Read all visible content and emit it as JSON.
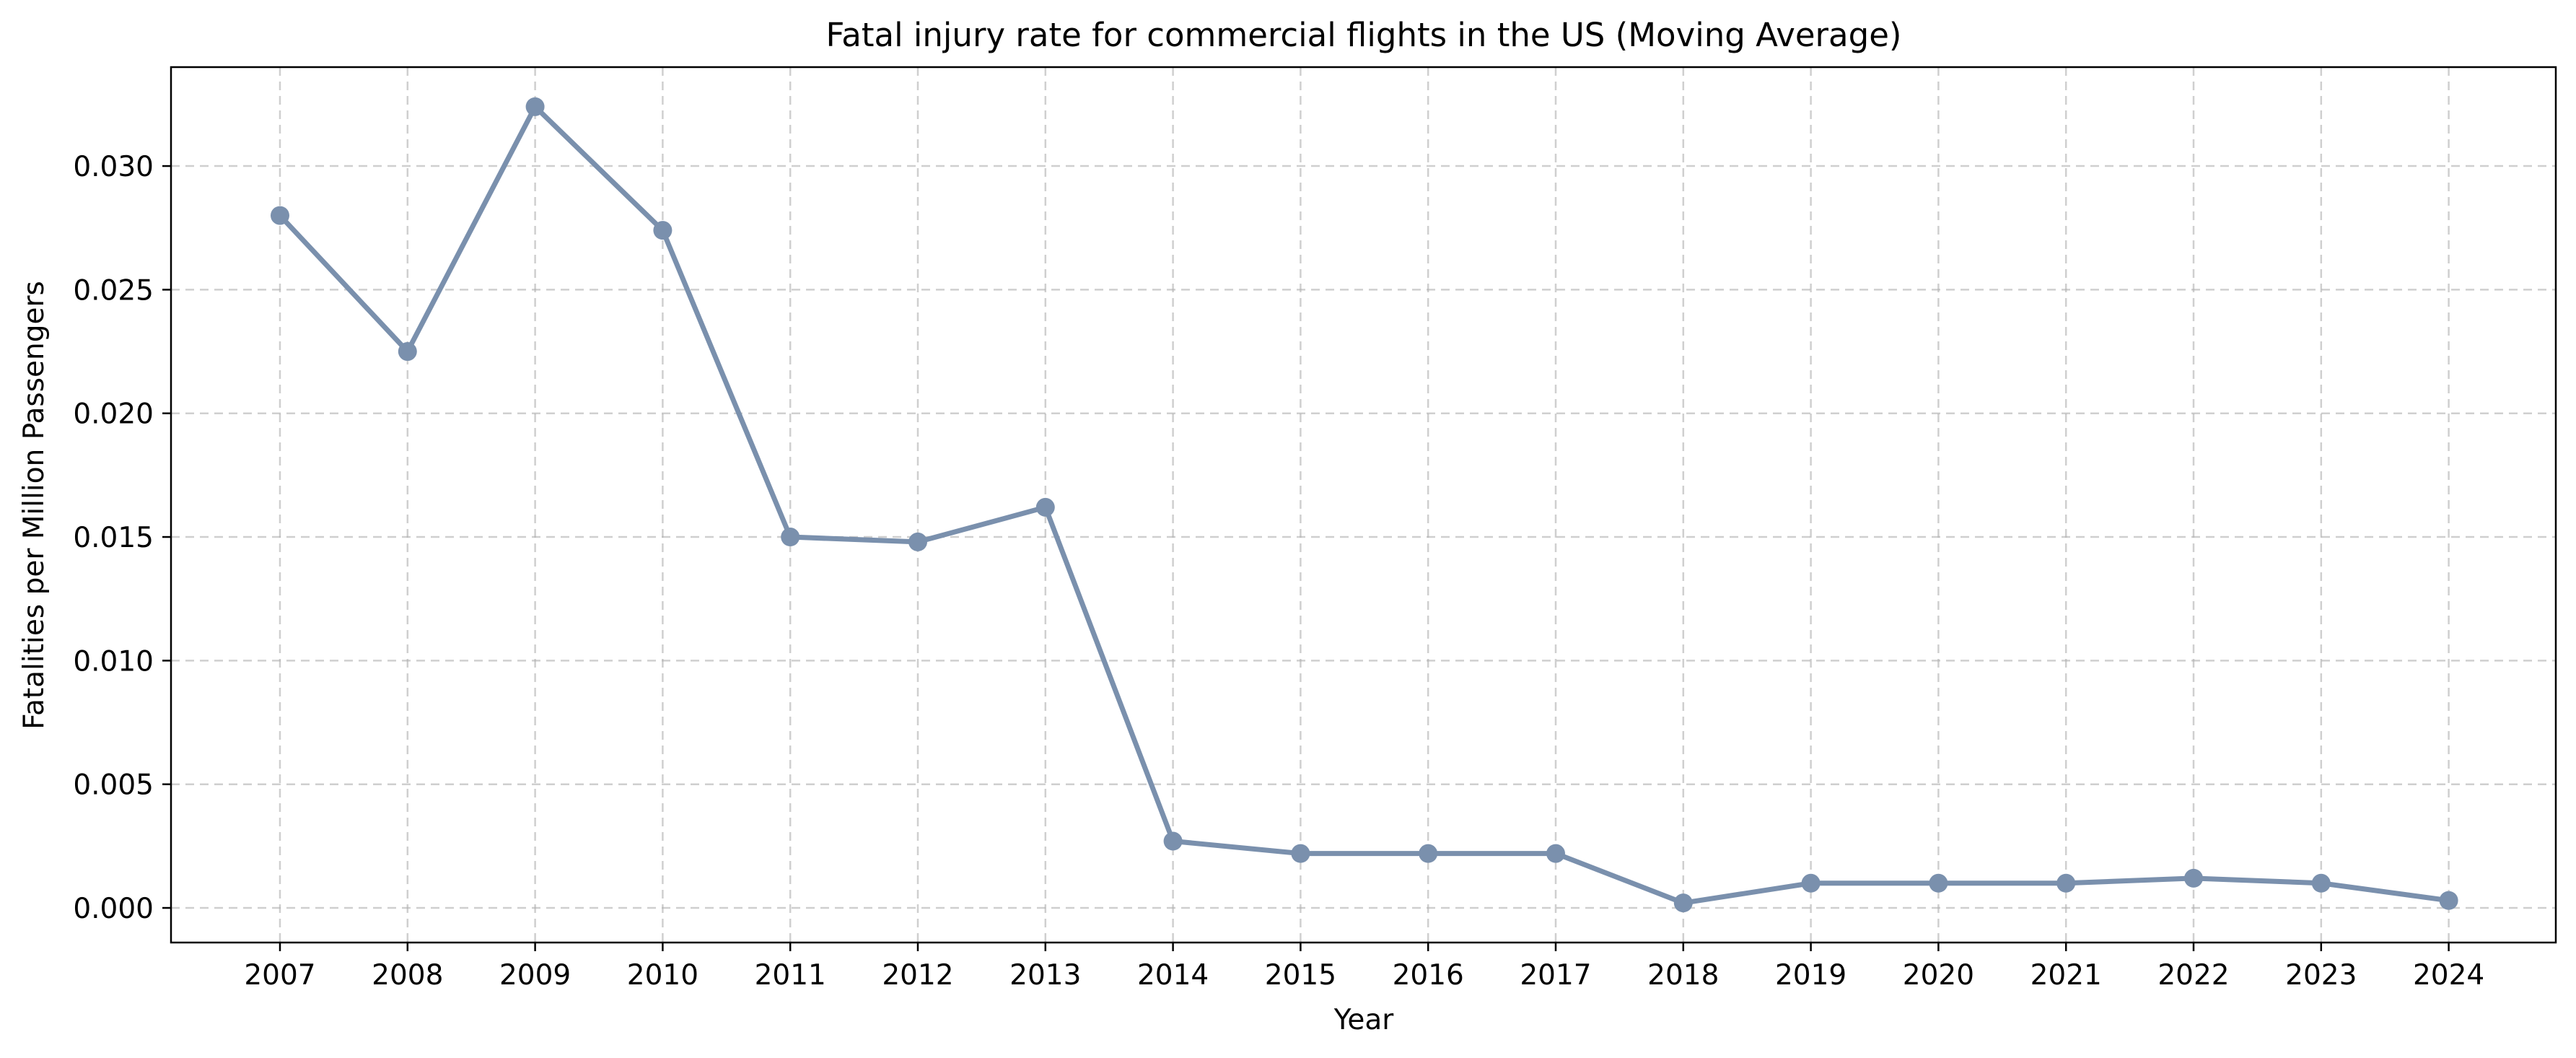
{
  "chart_data": {
    "type": "line",
    "title": "Fatal injury rate for commercial flights in the US (Moving Average)",
    "xlabel": "Year",
    "ylabel": "Fatalities per Million Passengers",
    "categories": [
      "2007",
      "2008",
      "2009",
      "2010",
      "2011",
      "2012",
      "2013",
      "2014",
      "2015",
      "2016",
      "2017",
      "2018",
      "2019",
      "2020",
      "2021",
      "2022",
      "2023",
      "2024"
    ],
    "series": [
      {
        "values": [
          0.028,
          0.0225,
          0.0324,
          0.0274,
          0.015,
          0.0148,
          0.0162,
          0.0027,
          0.0022,
          0.0022,
          0.0022,
          0.0002,
          0.001,
          0.001,
          0.001,
          0.0012,
          0.001,
          0.0003
        ],
        "color": "#7a90ad"
      }
    ],
    "ylim": [
      -0.0014,
      0.034
    ],
    "yticks": [
      "0.000",
      "0.005",
      "0.010",
      "0.015",
      "0.020",
      "0.025",
      "0.030"
    ],
    "grid": true,
    "marker": "circle"
  }
}
